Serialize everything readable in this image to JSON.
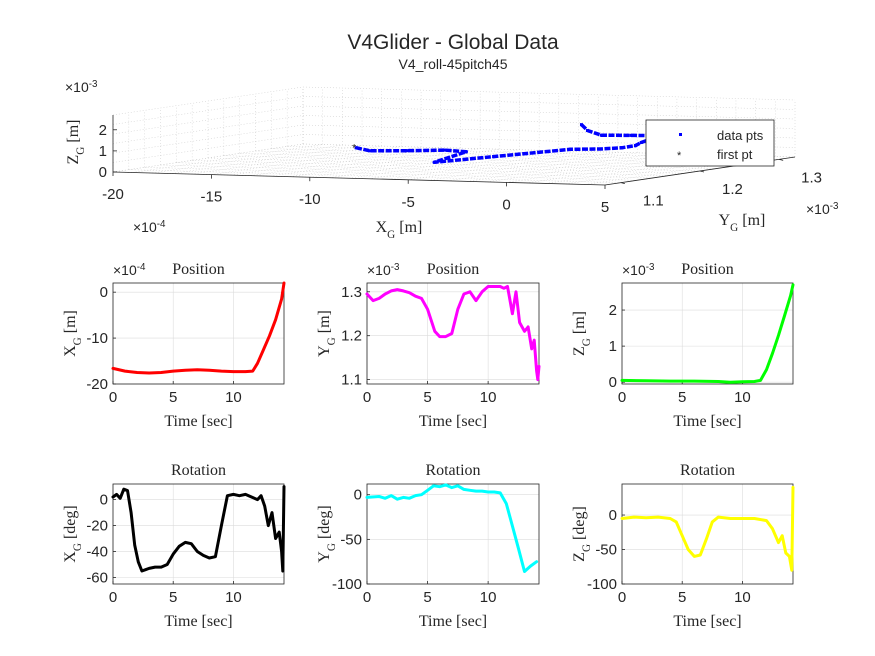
{
  "figure": {
    "title": "V4Glider - Global Data",
    "subtitle": "V4_roll-45pitch45"
  },
  "chart_data": [
    {
      "id": "p3d",
      "type": "scatter",
      "title": "",
      "xlabel": "X_G [m]",
      "ylabel": "Y_G [m]",
      "zlabel": "Z_G [m]",
      "x_exponent": "×10^{-4}",
      "y_exponent": "×10^{-3}",
      "z_exponent": "×10^{-3}",
      "x_ticks": [
        "-20",
        "-15",
        "-10",
        "-5",
        "0",
        "5"
      ],
      "y_ticks": [
        "1.1",
        "1.2",
        "1.3"
      ],
      "z_ticks": [
        "0",
        "1",
        "2"
      ],
      "xlim": [
        -20,
        5
      ],
      "ylim": [
        1.08,
        1.32
      ],
      "zlim": [
        0,
        2.7
      ],
      "legend": {
        "placement": "right",
        "entries": [
          {
            "label": "data pts",
            "color": "#0000ff",
            "marker": "dot"
          },
          {
            "label": "first pt",
            "color": "#ff0000",
            "marker": "star"
          }
        ]
      },
      "series": [
        {
          "name": "data pts",
          "color": "#0000ff",
          "x": [
            -16.5,
            -15,
            -13.5,
            -12,
            -10.5,
            -9,
            -8.5,
            -7.5,
            -6,
            -4.5,
            -3,
            -1.5,
            0,
            1,
            1.5,
            2,
            2.5,
            3
          ],
          "y": [
            1.3,
            1.28,
            1.29,
            1.3,
            1.29,
            1.22,
            1.2,
            1.25,
            1.31,
            1.31,
            1.3,
            1.28,
            1.25,
            1.25,
            1.2,
            1.15,
            1.12,
            1.1
          ],
          "z": [
            0.02,
            0.02,
            0.01,
            0.02,
            0.03,
            0.05,
            0.08,
            0.1,
            0.15,
            0.2,
            0.35,
            0.6,
            0.95,
            1.3,
            1.6,
            1.9,
            2.3,
            2.7
          ]
        },
        {
          "name": "first pt",
          "color": "#ff0000",
          "x": [
            -16.5
          ],
          "y": [
            1.3
          ],
          "z": [
            0.02
          ]
        }
      ]
    },
    {
      "id": "posX",
      "type": "line",
      "title": "Position",
      "xlabel": "Time [sec]",
      "ylabel": "X_G [m]",
      "exponent": "×10^{-4}",
      "x_ticks": [
        "0",
        "5",
        "10"
      ],
      "y_ticks": [
        "0",
        "-10",
        "-20"
      ],
      "xlim": [
        0,
        14.2
      ],
      "ylim": [
        -20,
        2
      ],
      "color": "#ff0000",
      "x": [
        0,
        1,
        2,
        3,
        4,
        5,
        6,
        7,
        8,
        9,
        10,
        11,
        11.6,
        12,
        12.5,
        13,
        13.5,
        14,
        14.2
      ],
      "y": [
        -16.6,
        -17.2,
        -17.5,
        -17.6,
        -17.5,
        -17.2,
        -17.0,
        -16.9,
        -17.0,
        -17.2,
        -17.3,
        -17.3,
        -17.2,
        -15.5,
        -12.5,
        -9.5,
        -6,
        -1.5,
        2
      ]
    },
    {
      "id": "posY",
      "type": "line",
      "title": "Position",
      "xlabel": "Time [sec]",
      "ylabel": "Y_G [m]",
      "exponent": "×10^{-3}",
      "x_ticks": [
        "0",
        "5",
        "10"
      ],
      "y_ticks": [
        "1.3",
        "1.2",
        "1.1"
      ],
      "xlim": [
        0,
        14.2
      ],
      "ylim": [
        1.09,
        1.32
      ],
      "color": "#ff00ff",
      "x": [
        0,
        0.5,
        1,
        1.5,
        2,
        2.5,
        3,
        3.5,
        4,
        4.5,
        5,
        5.3,
        5.6,
        6,
        6.5,
        7,
        7.5,
        8,
        8.5,
        9,
        9.5,
        10,
        10.5,
        11,
        11.3,
        11.6,
        12,
        12.3,
        12.6,
        13,
        13.3,
        13.6,
        13.8,
        14,
        14.1,
        14.2
      ],
      "y": [
        1.295,
        1.28,
        1.285,
        1.295,
        1.302,
        1.305,
        1.302,
        1.298,
        1.29,
        1.285,
        1.26,
        1.235,
        1.21,
        1.198,
        1.198,
        1.205,
        1.26,
        1.295,
        1.3,
        1.28,
        1.3,
        1.312,
        1.312,
        1.312,
        1.308,
        1.312,
        1.25,
        1.3,
        1.23,
        1.21,
        1.22,
        1.17,
        1.19,
        1.12,
        1.1,
        1.13
      ]
    },
    {
      "id": "posZ",
      "type": "line",
      "title": "Position",
      "xlabel": "Time [sec]",
      "ylabel": "Z_G [m]",
      "exponent": "×10^{-3}",
      "x_ticks": [
        "0",
        "5",
        "10"
      ],
      "y_ticks": [
        "0",
        "1",
        "2"
      ],
      "xlim": [
        0,
        14.2
      ],
      "ylim": [
        -0.05,
        2.75
      ],
      "color": "#00ff00",
      "x": [
        0,
        2,
        4,
        6,
        8,
        9,
        10,
        11,
        11.5,
        12,
        12.5,
        13,
        13.5,
        14,
        14.2
      ],
      "y": [
        0.05,
        0.04,
        0.03,
        0.03,
        0.02,
        0.0,
        0.01,
        0.02,
        0.05,
        0.35,
        0.8,
        1.3,
        1.85,
        2.4,
        2.7
      ]
    },
    {
      "id": "rotX",
      "type": "line",
      "title": "Rotation",
      "xlabel": "Time [sec]",
      "ylabel": "X_G [deg]",
      "x_ticks": [
        "0",
        "5",
        "10"
      ],
      "y_ticks": [
        "0",
        "-20",
        "-40",
        "-60"
      ],
      "xlim": [
        0,
        14.2
      ],
      "ylim": [
        -65,
        12
      ],
      "color": "#000000",
      "x": [
        0,
        0.3,
        0.6,
        0.9,
        1.2,
        1.5,
        1.8,
        2.1,
        2.4,
        2.7,
        3,
        3.5,
        4,
        4.5,
        5,
        5.5,
        6,
        6.5,
        7,
        7.5,
        8,
        8.5,
        9,
        9.5,
        10,
        10.5,
        11,
        11.5,
        12,
        12.3,
        12.6,
        12.9,
        13.2,
        13.5,
        13.8,
        14,
        14.1,
        14.2
      ],
      "y": [
        2,
        4,
        1,
        8,
        7,
        -10,
        -35,
        -48,
        -55,
        -54,
        -53,
        -52,
        -52,
        -50,
        -42,
        -36,
        -33,
        -34,
        -40,
        -43,
        -45,
        -44,
        -20,
        3,
        4,
        3,
        4,
        2,
        0,
        3,
        -5,
        -20,
        -10,
        -30,
        -25,
        -40,
        -55,
        10
      ]
    },
    {
      "id": "rotY",
      "type": "line",
      "title": "Rotation",
      "xlabel": "Time [sec]",
      "ylabel": "Y_G [deg]",
      "x_ticks": [
        "0",
        "5",
        "10"
      ],
      "y_ticks": [
        "0",
        "-50",
        "-100"
      ],
      "xlim": [
        0,
        14.2
      ],
      "ylim": [
        -100,
        12
      ],
      "color": "#00ffff",
      "x": [
        0,
        1,
        1.5,
        2,
        2.5,
        3,
        3.5,
        4,
        4.5,
        5,
        5.5,
        6,
        6.5,
        7,
        7.5,
        8,
        8.5,
        9,
        9.5,
        10,
        10.5,
        11,
        11.5,
        12,
        12.5,
        13,
        13.5,
        14
      ],
      "y": [
        -3,
        -2,
        -4,
        -1,
        -5,
        -3,
        -4,
        -1,
        0,
        5,
        10,
        9,
        11,
        8,
        10,
        6,
        5,
        4,
        4,
        3,
        3,
        2,
        -10,
        -35,
        -60,
        -86,
        -80,
        -75
      ]
    },
    {
      "id": "rotZ",
      "type": "line",
      "title": "Rotation",
      "xlabel": "Time [sec]",
      "ylabel": "Z_G [deg]",
      "x_ticks": [
        "0",
        "5",
        "10"
      ],
      "y_ticks": [
        "0",
        "-50",
        "-100"
      ],
      "xlim": [
        0,
        14.2
      ],
      "ylim": [
        -100,
        45
      ],
      "color": "#ffff00",
      "x": [
        0,
        1,
        2,
        3,
        4,
        4.5,
        5,
        5.5,
        6,
        6.5,
        7,
        7.5,
        8,
        9,
        10,
        11,
        12,
        12.5,
        13,
        13.3,
        13.6,
        13.9,
        14.1,
        14.2
      ],
      "y": [
        -5,
        -3,
        -4,
        -3,
        -5,
        -10,
        -30,
        -50,
        -60,
        -58,
        -35,
        -10,
        -3,
        -5,
        -5,
        -5,
        -8,
        -20,
        -40,
        -30,
        -55,
        -60,
        -80,
        40
      ]
    }
  ]
}
